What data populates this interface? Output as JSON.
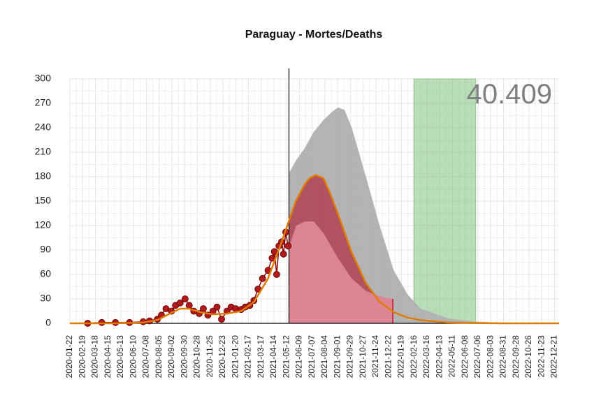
{
  "chart_data": {
    "type": "bar",
    "title": "Paraguay - Mortes/Deaths",
    "total_label": "40.409",
    "xlabel": "",
    "ylabel": "",
    "ylim": [
      0,
      300
    ],
    "y_ticks": [
      0,
      30,
      60,
      90,
      120,
      150,
      180,
      210,
      240,
      270,
      300
    ],
    "x_tick_labels": [
      "2020-01-22",
      "2020-02-19",
      "2020-03-18",
      "2020-04-15",
      "2020-05-13",
      "2020-06-10",
      "2020-07-08",
      "2020-08-05",
      "2020-09-02",
      "2020-09-30",
      "2020-10-28",
      "2020-11-25",
      "2020-12-23",
      "2021-01-20",
      "2021-02-17",
      "2021-03-17",
      "2021-04-14",
      "2021-05-12",
      "2021-06-09",
      "2021-07-07",
      "2021-08-04",
      "2021-09-01",
      "2021-09-29",
      "2021-10-27",
      "2021-11-24",
      "2021-12-22",
      "2022-01-19",
      "2022-02-16",
      "2022-03-16",
      "2022-04-13",
      "2022-05-11",
      "2022-06-08",
      "2022-07-06",
      "2022-08-03",
      "2022-08-31",
      "2022-09-28",
      "2022-10-26",
      "2022-11-23",
      "2022-12-21"
    ],
    "x_start": "2020-01-22",
    "x_end": "2022-12-31",
    "forecast_start": "2021-05-17",
    "observed_points": {
      "x": [
        "2020-03-01",
        "2020-04-01",
        "2020-05-01",
        "2020-06-01",
        "2020-07-01",
        "2020-07-15",
        "2020-08-01",
        "2020-08-10",
        "2020-08-20",
        "2020-09-01",
        "2020-09-10",
        "2020-09-20",
        "2020-10-01",
        "2020-10-10",
        "2020-10-20",
        "2020-11-01",
        "2020-11-10",
        "2020-11-20",
        "2020-12-01",
        "2020-12-10",
        "2020-12-20",
        "2021-01-01",
        "2021-01-10",
        "2021-01-20",
        "2021-02-01",
        "2021-02-10",
        "2021-02-20",
        "2021-03-01",
        "2021-03-10",
        "2021-03-20",
        "2021-04-01",
        "2021-04-10",
        "2021-04-15",
        "2021-04-20",
        "2021-04-25",
        "2021-05-01",
        "2021-05-05",
        "2021-05-10",
        "2021-05-15"
      ],
      "y": [
        0,
        1,
        1,
        1,
        2,
        3,
        5,
        10,
        18,
        15,
        22,
        25,
        30,
        22,
        15,
        12,
        18,
        10,
        15,
        20,
        5,
        15,
        20,
        18,
        17,
        20,
        22,
        28,
        42,
        55,
        65,
        80,
        88,
        60,
        95,
        100,
        85,
        112,
        95
      ]
    },
    "series": [
      {
        "name": "",
        "kind": "fitted_curve",
        "color": "#e07b00",
        "x": [
          "2020-01-22",
          "2020-05-01",
          "2020-07-01",
          "2020-08-01",
          "2020-09-01",
          "2020-09-20",
          "2020-10-10",
          "2020-11-01",
          "2020-12-01",
          "2021-01-01",
          "2021-02-01",
          "2021-03-01",
          "2021-04-01",
          "2021-05-01",
          "2021-06-01",
          "2021-06-20",
          "2021-07-01",
          "2021-07-15",
          "2021-08-01",
          "2021-08-15",
          "2021-09-01",
          "2021-10-01",
          "2021-11-01",
          "2021-12-01",
          "2022-01-01",
          "2022-02-01",
          "2022-03-01",
          "2022-05-01",
          "2022-07-01",
          "2022-09-01",
          "2022-12-31"
        ],
        "y": [
          0,
          0,
          1,
          4,
          13,
          18,
          18,
          14,
          11,
          12,
          15,
          26,
          55,
          100,
          150,
          170,
          178,
          182,
          178,
          160,
          135,
          88,
          50,
          27,
          14,
          7,
          4,
          1,
          0.3,
          0,
          0
        ]
      },
      {
        "name": "",
        "kind": "upper_band",
        "color": "#b3b3b3",
        "x": [
          "2021-05-17",
          "2021-06-01",
          "2021-06-20",
          "2021-07-10",
          "2021-08-01",
          "2021-08-20",
          "2021-09-01",
          "2021-09-15",
          "2021-10-01",
          "2021-11-01",
          "2021-12-01",
          "2022-01-01",
          "2022-02-01",
          "2022-03-01",
          "2022-05-01",
          "2022-07-01",
          "2022-09-01",
          "2022-12-31"
        ],
        "y": [
          185,
          200,
          215,
          235,
          250,
          260,
          265,
          262,
          240,
          180,
          120,
          65,
          35,
          18,
          6,
          2,
          0.6,
          0
        ]
      },
      {
        "name": "",
        "kind": "lower_band",
        "color": "#e08090",
        "x": [
          "2021-05-17",
          "2021-06-01",
          "2021-06-20",
          "2021-07-10",
          "2021-08-01",
          "2021-09-01",
          "2021-10-01",
          "2021-11-01",
          "2021-12-01",
          "2021-12-31"
        ],
        "y": [
          95,
          120,
          125,
          125,
          110,
          80,
          55,
          40,
          33,
          30
        ]
      }
    ],
    "highlight_window": {
      "x": [
        "2022-02-15",
        "2022-07-01"
      ],
      "color": "#7fbf7f"
    },
    "colors": {
      "point_fill": "#b2191a",
      "point_stroke": "#5a0000",
      "observed_line": "#8b0000",
      "lower_band_edge": "#c0192f",
      "vline": "#000000",
      "band_mid": "#b04050"
    },
    "grid": true,
    "legend": "none"
  }
}
